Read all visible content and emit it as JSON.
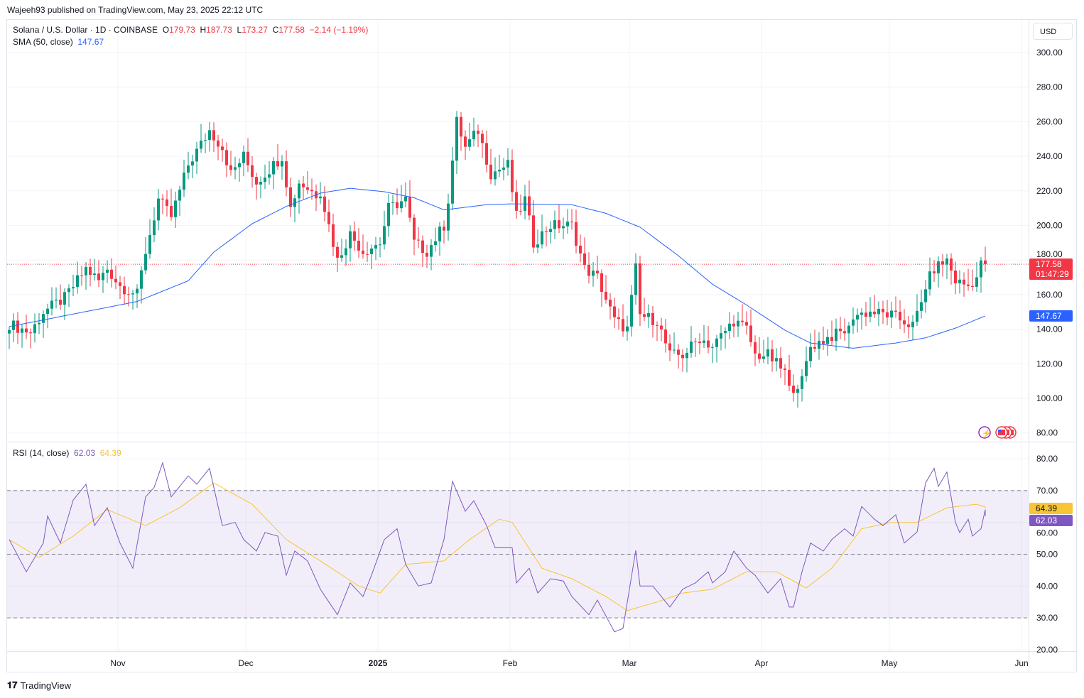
{
  "published": "Wajeeh93 published on TradingView.com, May 23, 2025 22:12 UTC",
  "header": {
    "symbol": "Solana / U.S. Dollar · 1D · COINBASE",
    "o_label": "O",
    "o": "179.73",
    "h_label": "H",
    "h": "187.73",
    "l_label": "L",
    "l": "173.27",
    "c_label": "C",
    "c": "177.58",
    "change": "−2.14 (−1.19%)",
    "sma_label": "SMA (50, close)",
    "sma_value": "147.67",
    "rsi_label": "RSI (14, close)",
    "rsi_value": "62.03",
    "rsi_ma_value": "64.39"
  },
  "currency": "USD",
  "price_tag": {
    "price": "177.58",
    "countdown": "01:47:29"
  },
  "sma_tag": "147.67",
  "rsi_tags": {
    "ma": "64.39",
    "rsi": "62.03"
  },
  "footer": {
    "brand": "TradingView"
  },
  "colors": {
    "up": "#089981",
    "down": "#f23645",
    "sma": "#2962ff",
    "rsi": "#7e57c2",
    "rsi_ma": "#f7c535"
  },
  "chart_data": {
    "type": "candlestick",
    "title": "Solana / U.S. Dollar · 1D · COINBASE",
    "start_date": "2024-10-06",
    "days": 230,
    "price_axis": {
      "ticks": [
        "80.00",
        "100.00",
        "120.00",
        "140.00",
        "160.00",
        "180.00",
        "200.00",
        "220.00",
        "240.00",
        "260.00",
        "280.00",
        "300.00"
      ],
      "range": [
        80,
        300
      ]
    },
    "time_axis": {
      "ticks": [
        {
          "label": "Nov",
          "day": 26
        },
        {
          "label": "Dec",
          "day": 56
        },
        {
          "label": "2025",
          "day": 87
        },
        {
          "label": "Feb",
          "day": 118
        },
        {
          "label": "Mar",
          "day": 146
        },
        {
          "label": "Apr",
          "day": 177
        },
        {
          "label": "May",
          "day": 207
        },
        {
          "label": "Jun",
          "day": 238
        }
      ]
    },
    "close_keypoints": [
      [
        0,
        143
      ],
      [
        5,
        138
      ],
      [
        8,
        150
      ],
      [
        13,
        158
      ],
      [
        18,
        175
      ],
      [
        21,
        168
      ],
      [
        23,
        175
      ],
      [
        26,
        165
      ],
      [
        30,
        160
      ],
      [
        32,
        185
      ],
      [
        35,
        215
      ],
      [
        38,
        205
      ],
      [
        42,
        235
      ],
      [
        47,
        255
      ],
      [
        50,
        245
      ],
      [
        52,
        230
      ],
      [
        55,
        240
      ],
      [
        58,
        225
      ],
      [
        62,
        235
      ],
      [
        64,
        240
      ],
      [
        66,
        210
      ],
      [
        68,
        225
      ],
      [
        72,
        218
      ],
      [
        73,
        220
      ],
      [
        75,
        200
      ],
      [
        77,
        180
      ],
      [
        80,
        195
      ],
      [
        83,
        185
      ],
      [
        87,
        190
      ],
      [
        89,
        210
      ],
      [
        93,
        215
      ],
      [
        95,
        190
      ],
      [
        98,
        185
      ],
      [
        102,
        200
      ],
      [
        103,
        215
      ],
      [
        105,
        260
      ],
      [
        107,
        245
      ],
      [
        110,
        255
      ],
      [
        113,
        230
      ],
      [
        117,
        235
      ],
      [
        119,
        205
      ],
      [
        121,
        215
      ],
      [
        123,
        190
      ],
      [
        127,
        200
      ],
      [
        132,
        200
      ],
      [
        135,
        175
      ],
      [
        138,
        170
      ],
      [
        142,
        145
      ],
      [
        145,
        140
      ],
      [
        147,
        175
      ],
      [
        148,
        148
      ],
      [
        152,
        145
      ],
      [
        155,
        125
      ],
      [
        158,
        125
      ],
      [
        162,
        135
      ],
      [
        165,
        130
      ],
      [
        170,
        145
      ],
      [
        173,
        140
      ],
      [
        175,
        125
      ],
      [
        178,
        125
      ],
      [
        182,
        115
      ],
      [
        183,
        105
      ],
      [
        186,
        110
      ],
      [
        188,
        130
      ],
      [
        192,
        135
      ],
      [
        197,
        140
      ],
      [
        198,
        148
      ],
      [
        202,
        150
      ],
      [
        207,
        148
      ],
      [
        212,
        142
      ],
      [
        214,
        155
      ],
      [
        215,
        165
      ],
      [
        217,
        175
      ],
      [
        220,
        180
      ],
      [
        222,
        168
      ],
      [
        225,
        165
      ],
      [
        227,
        170
      ],
      [
        228,
        179.73
      ],
      [
        229,
        177.58
      ]
    ],
    "last_candle": {
      "open": 179.73,
      "high": 187.73,
      "low": 173.27,
      "close": 177.58
    },
    "sma50_keypoints": [
      [
        0,
        141.5
      ],
      [
        30,
        156
      ],
      [
        42,
        168
      ],
      [
        48,
        184.6
      ],
      [
        57,
        201
      ],
      [
        65,
        211
      ],
      [
        73,
        218.7
      ],
      [
        80,
        221.5
      ],
      [
        88,
        219.5
      ],
      [
        95,
        216
      ],
      [
        102,
        209
      ],
      [
        112,
        212
      ],
      [
        118,
        212.5
      ],
      [
        132,
        212
      ],
      [
        140,
        207
      ],
      [
        148,
        199
      ],
      [
        157,
        182.5
      ],
      [
        165,
        166
      ],
      [
        173,
        154
      ],
      [
        182,
        139.4
      ],
      [
        188,
        132
      ],
      [
        198,
        129
      ],
      [
        208,
        132
      ],
      [
        215,
        135
      ],
      [
        222,
        140.6
      ],
      [
        229,
        147.67
      ]
    ],
    "rsi": {
      "axis_ticks": [
        "20.00",
        "30.00",
        "40.00",
        "50.00",
        "60.00",
        "70.00",
        "80.00"
      ],
      "range": [
        20,
        80
      ],
      "bands": [
        30,
        50,
        70
      ],
      "rsi_keypoints": [
        [
          0,
          54.6
        ],
        [
          4,
          44.5
        ],
        [
          8,
          53.5
        ],
        [
          9,
          62
        ],
        [
          12,
          53.5
        ],
        [
          15,
          67
        ],
        [
          18,
          72
        ],
        [
          20,
          59
        ],
        [
          23,
          64.6
        ],
        [
          26,
          53.5
        ],
        [
          29,
          45.6
        ],
        [
          32,
          68
        ],
        [
          34,
          71
        ],
        [
          36,
          78.7
        ],
        [
          38,
          68
        ],
        [
          42,
          74.6
        ],
        [
          44,
          72
        ],
        [
          47,
          77
        ],
        [
          50,
          59
        ],
        [
          53,
          60
        ],
        [
          55,
          54.6
        ],
        [
          58,
          51
        ],
        [
          60,
          56.8
        ],
        [
          63,
          55.7
        ],
        [
          65,
          43.4
        ],
        [
          67,
          51
        ],
        [
          70,
          47.9
        ],
        [
          73,
          39
        ],
        [
          77,
          31
        ],
        [
          80,
          41
        ],
        [
          83,
          36.7
        ],
        [
          85,
          43.4
        ],
        [
          88,
          54.6
        ],
        [
          91,
          58
        ],
        [
          93,
          46.8
        ],
        [
          96,
          40
        ],
        [
          99,
          41
        ],
        [
          102,
          54.6
        ],
        [
          104,
          72.9
        ],
        [
          107,
          63.5
        ],
        [
          109,
          66.8
        ],
        [
          112,
          59
        ],
        [
          114,
          52
        ],
        [
          118,
          52
        ],
        [
          119,
          41
        ],
        [
          122,
          45.6
        ],
        [
          124,
          37.8
        ],
        [
          127,
          42.3
        ],
        [
          130,
          41.6
        ],
        [
          132,
          36.7
        ],
        [
          136,
          31
        ],
        [
          138,
          35.6
        ],
        [
          142,
          25.6
        ],
        [
          144,
          26.7
        ],
        [
          147,
          51.2
        ],
        [
          148,
          40
        ],
        [
          151,
          40
        ],
        [
          155,
          33.4
        ],
        [
          158,
          39
        ],
        [
          161,
          41
        ],
        [
          164,
          44.5
        ],
        [
          165,
          41
        ],
        [
          168,
          44.5
        ],
        [
          170,
          51
        ],
        [
          173,
          45.6
        ],
        [
          175,
          43.4
        ],
        [
          178,
          37.8
        ],
        [
          181,
          42.3
        ],
        [
          183,
          33.4
        ],
        [
          184,
          33.4
        ],
        [
          186,
          44.5
        ],
        [
          188,
          53.5
        ],
        [
          191,
          51
        ],
        [
          193,
          54.6
        ],
        [
          196,
          58
        ],
        [
          198,
          55.7
        ],
        [
          200,
          65
        ],
        [
          203,
          61
        ],
        [
          205,
          59
        ],
        [
          208,
          62.4
        ],
        [
          210,
          53.5
        ],
        [
          213,
          57
        ],
        [
          215,
          72.4
        ],
        [
          217,
          77
        ],
        [
          218,
          71.3
        ],
        [
          220,
          75.8
        ],
        [
          222,
          60
        ],
        [
          223,
          56.8
        ],
        [
          225,
          61
        ],
        [
          226,
          55.7
        ],
        [
          228,
          58
        ],
        [
          229,
          64
        ],
        [
          230,
          62.03
        ]
      ],
      "ma_keypoints": [
        [
          0,
          54.6
        ],
        [
          7,
          49
        ],
        [
          15,
          55.7
        ],
        [
          23,
          64
        ],
        [
          32,
          59
        ],
        [
          40,
          64.6
        ],
        [
          48,
          72.4
        ],
        [
          57,
          65.7
        ],
        [
          65,
          54.6
        ],
        [
          73,
          47.9
        ],
        [
          82,
          40
        ],
        [
          87,
          37.8
        ],
        [
          93,
          46.8
        ],
        [
          102,
          47.9
        ],
        [
          108,
          54.6
        ],
        [
          115,
          61
        ],
        [
          118,
          60
        ],
        [
          125,
          45.6
        ],
        [
          132,
          42.3
        ],
        [
          140,
          36.7
        ],
        [
          145,
          32.3
        ],
        [
          152,
          35
        ],
        [
          158,
          37.8
        ],
        [
          165,
          39
        ],
        [
          173,
          44.5
        ],
        [
          180,
          44.5
        ],
        [
          187,
          39.4
        ],
        [
          193,
          45.6
        ],
        [
          200,
          58
        ],
        [
          207,
          60
        ],
        [
          213,
          60
        ],
        [
          220,
          64.6
        ],
        [
          227,
          65.7
        ],
        [
          230,
          64.39
        ]
      ]
    }
  }
}
